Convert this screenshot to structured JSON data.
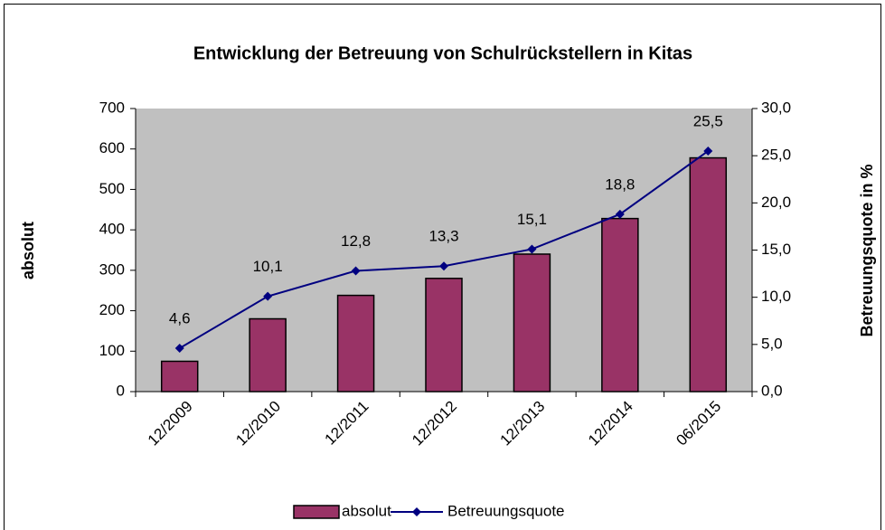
{
  "chart_data": {
    "type": "bar",
    "title": "Entwicklung der Betreuung von Schulrückstellern in Kitas",
    "ylabel": "absolut",
    "y2label": "Betreuungsquote in %",
    "categories": [
      "12/2009",
      "12/2010",
      "12/2011",
      "12/2012",
      "12/2013",
      "12/2014",
      "06/2015"
    ],
    "series": [
      {
        "name": "absolut",
        "type": "bar",
        "color": "#993366",
        "values": [
          75,
          180,
          238,
          280,
          340,
          428,
          578
        ]
      },
      {
        "name": "Betreuungsquote",
        "type": "line",
        "axis": "y2",
        "color": "#000080",
        "values": [
          4.6,
          10.1,
          12.8,
          13.3,
          15.1,
          18.8,
          25.5
        ],
        "value_labels": [
          "4,6",
          "10,1",
          "12,8",
          "13,3",
          "15,1",
          "18,8",
          "25,5"
        ]
      }
    ],
    "ylim": [
      0,
      700
    ],
    "yticks": [
      0,
      100,
      200,
      300,
      400,
      500,
      600,
      700
    ],
    "y2lim": [
      0,
      30
    ],
    "y2ticks": [
      {
        "value": 0,
        "label": "0,0"
      },
      {
        "value": 5,
        "label": "5,0"
      },
      {
        "value": 10,
        "label": "10,0"
      },
      {
        "value": 15,
        "label": "15,0"
      },
      {
        "value": 20,
        "label": "20,0"
      },
      {
        "value": 25,
        "label": "25,0"
      },
      {
        "value": 30,
        "label": "30,0"
      }
    ],
    "plot_background": "#c0c0c0",
    "legend": "bottom"
  }
}
